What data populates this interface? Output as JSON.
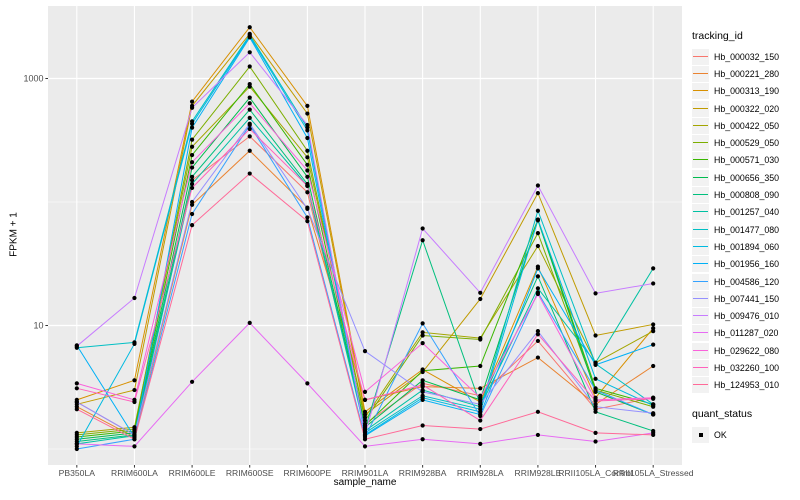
{
  "figure": {
    "bg": "#FFFFFF",
    "panel_bg": "#EBEBEB",
    "grid_color": "#FFFFFF",
    "tick_mark_color": "#333333",
    "tick_label_color": "#4D4D4D",
    "point_color": "#000000"
  },
  "chart_data": {
    "type": "line",
    "title": "",
    "xlabel": "sample_name",
    "ylabel": "FPKM + 1",
    "y_scale": "log10",
    "ylim": [
      0.74,
      3500
    ],
    "y_ticks": [
      {
        "value": 10,
        "label": "10"
      },
      {
        "value": 1000,
        "label": "1000"
      }
    ],
    "y_minor_ticks": [
      1,
      100
    ],
    "grid": true,
    "legend_position": "right",
    "categories": [
      "PB350LA",
      "RRIM600LA",
      "RRIM600LE",
      "RRIM600SE",
      "RRIM600PE",
      "RRIM901LA",
      "RRIM928BA",
      "RRIM928LA",
      "RRIM928LE",
      "RRII105LA_Control",
      "RRII105LA_Stressed"
    ],
    "series": [
      {
        "name": "Hb_000032_150",
        "color": "#F8766D",
        "values": [
          2.4,
          1.3,
          150,
          340,
          120,
          1.6,
          3.4,
          2.7,
          7.5,
          2.1,
          2.6
        ]
      },
      {
        "name": "Hb_000221_280",
        "color": "#EA8331",
        "values": [
          2.2,
          1.25,
          95,
          260,
          90,
          2.5,
          3.2,
          3.1,
          5.5,
          2.3,
          4.7
        ]
      },
      {
        "name": "Hb_000313_190",
        "color": "#D89000",
        "values": [
          2.5,
          3.6,
          650,
          2600,
          600,
          2.0,
          4.4,
          2.4,
          30,
          2.6,
          9.5
        ]
      },
      {
        "name": "Hb_000322_020",
        "color": "#C09B00",
        "values": [
          2.3,
          3.0,
          600,
          2300,
          520,
          1.9,
          4.2,
          16.4,
          118,
          8.3,
          10.2
        ]
      },
      {
        "name": "Hb_000422_050",
        "color": "#A3A500",
        "values": [
          1.35,
          1.5,
          280,
          860,
          230,
          1.8,
          8.8,
          7.9,
          44,
          5.0,
          9.0
        ]
      },
      {
        "name": "Hb_000529_050",
        "color": "#7CAE00",
        "values": [
          1.3,
          1.45,
          320,
          1250,
          260,
          1.7,
          8.3,
          7.7,
          56,
          3.0,
          2.2
        ]
      },
      {
        "name": "Hb_000571_030",
        "color": "#39B600",
        "values": [
          1.25,
          1.4,
          240,
          900,
          200,
          1.55,
          4.3,
          4.7,
          72,
          3.1,
          2.3
        ]
      },
      {
        "name": "Hb_000656_350",
        "color": "#00BB4E",
        "values": [
          1.2,
          1.35,
          190,
          700,
          160,
          1.5,
          3.6,
          2.5,
          71,
          2.9,
          1.9
        ]
      },
      {
        "name": "Hb_000808_090",
        "color": "#00BF7D",
        "values": [
          1.15,
          1.3,
          160,
          560,
          140,
          1.45,
          49,
          2.3,
          25,
          2.0,
          1.4
        ]
      },
      {
        "name": "Hb_001257_040",
        "color": "#00C1A3",
        "values": [
          1.1,
          1.28,
          140,
          480,
          135,
          1.4,
          3.0,
          2.2,
          20,
          5.0,
          29
        ]
      },
      {
        "name": "Hb_001477_080",
        "color": "#00BFC4",
        "values": [
          6.6,
          7.3,
          450,
          2250,
          400,
          1.35,
          2.7,
          2.1,
          85,
          4.9,
          2.3
        ]
      },
      {
        "name": "Hb_001894_060",
        "color": "#00BAE0",
        "values": [
          1.05,
          7.1,
          430,
          2200,
          380,
          1.3,
          2.6,
          2.0,
          72,
          3.7,
          2.25
        ]
      },
      {
        "name": "Hb_001956_160",
        "color": "#00B0F6",
        "values": [
          6.9,
          1.25,
          400,
          2150,
          330,
          1.28,
          2.5,
          1.9,
          29,
          4.8,
          7.0
        ]
      },
      {
        "name": "Hb_004586_120",
        "color": "#35A2FF",
        "values": [
          1.0,
          1.2,
          80,
          420,
          75,
          1.25,
          10.4,
          1.85,
          18.5,
          3.0,
          1.9
        ]
      },
      {
        "name": "Hb_007441_150",
        "color": "#9590FF",
        "values": [
          2.4,
          1.3,
          100,
          430,
          88,
          6.2,
          2.9,
          2.3,
          9.0,
          2.2,
          1.95
        ]
      },
      {
        "name": "Hb_009476_010",
        "color": "#C77CFF",
        "values": [
          6.8,
          16.7,
          580,
          1630,
          420,
          1.3,
          61,
          18.4,
          136,
          18.2,
          21.9
        ]
      },
      {
        "name": "Hb_011287_020",
        "color": "#E76BF3",
        "values": [
          1.1,
          1.05,
          3.5,
          10.5,
          3.4,
          1.05,
          1.2,
          1.1,
          1.3,
          1.15,
          1.35
        ]
      },
      {
        "name": "Hb_029622_080",
        "color": "#FA62DB",
        "values": [
          3.4,
          2.5,
          210,
          630,
          180,
          2.9,
          7.2,
          2.6,
          18,
          2.5,
          2.6
        ]
      },
      {
        "name": "Hb_032260_100",
        "color": "#FF62BC",
        "values": [
          3.1,
          2.4,
          130,
          390,
          135,
          2.5,
          3.3,
          1.7,
          8.5,
          2.45,
          2.55
        ]
      },
      {
        "name": "Hb_124953_010",
        "color": "#FF6A98",
        "values": [
          2.1,
          1.2,
          65,
          170,
          70,
          1.2,
          1.55,
          1.45,
          2.0,
          1.35,
          1.3
        ]
      }
    ],
    "legend": {
      "title": "tracking_id"
    },
    "legend2": {
      "title": "quant_status",
      "items": [
        "OK"
      ]
    }
  }
}
